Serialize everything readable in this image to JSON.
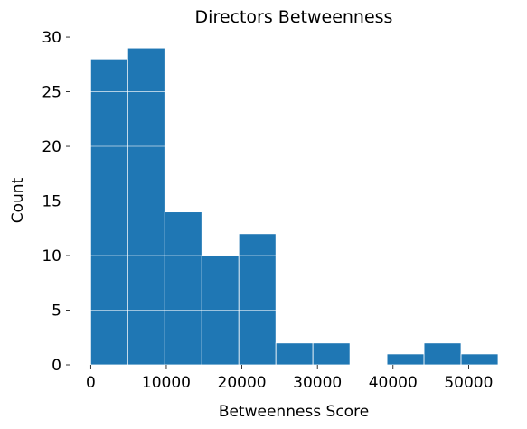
{
  "chart_data": {
    "type": "bar",
    "title": "Directors Betweenness",
    "xlabel": "Betweenness Score",
    "ylabel": "Count",
    "bins": [
      {
        "x0": 0,
        "x1": 4900,
        "count": 28
      },
      {
        "x0": 4900,
        "x1": 9800,
        "count": 29
      },
      {
        "x0": 9800,
        "x1": 14700,
        "count": 14
      },
      {
        "x0": 14700,
        "x1": 19600,
        "count": 10
      },
      {
        "x0": 19600,
        "x1": 24500,
        "count": 12
      },
      {
        "x0": 24500,
        "x1": 29400,
        "count": 2
      },
      {
        "x0": 29400,
        "x1": 34300,
        "count": 2
      },
      {
        "x0": 34300,
        "x1": 39200,
        "count": 0
      },
      {
        "x0": 39200,
        "x1": 44100,
        "count": 1
      },
      {
        "x0": 44100,
        "x1": 49000,
        "count": 2
      },
      {
        "x0": 49000,
        "x1": 53900,
        "count": 1
      }
    ],
    "xticks": [
      0,
      10000,
      20000,
      30000,
      40000,
      50000
    ],
    "yticks": [
      0,
      5,
      10,
      15,
      20,
      25,
      30
    ],
    "xlim": [
      -1000,
      53900
    ],
    "ylim": [
      0,
      30.5
    ],
    "grid": "horizontal",
    "bar_color": "#1f77b4",
    "grid_color": "#ffffff"
  }
}
